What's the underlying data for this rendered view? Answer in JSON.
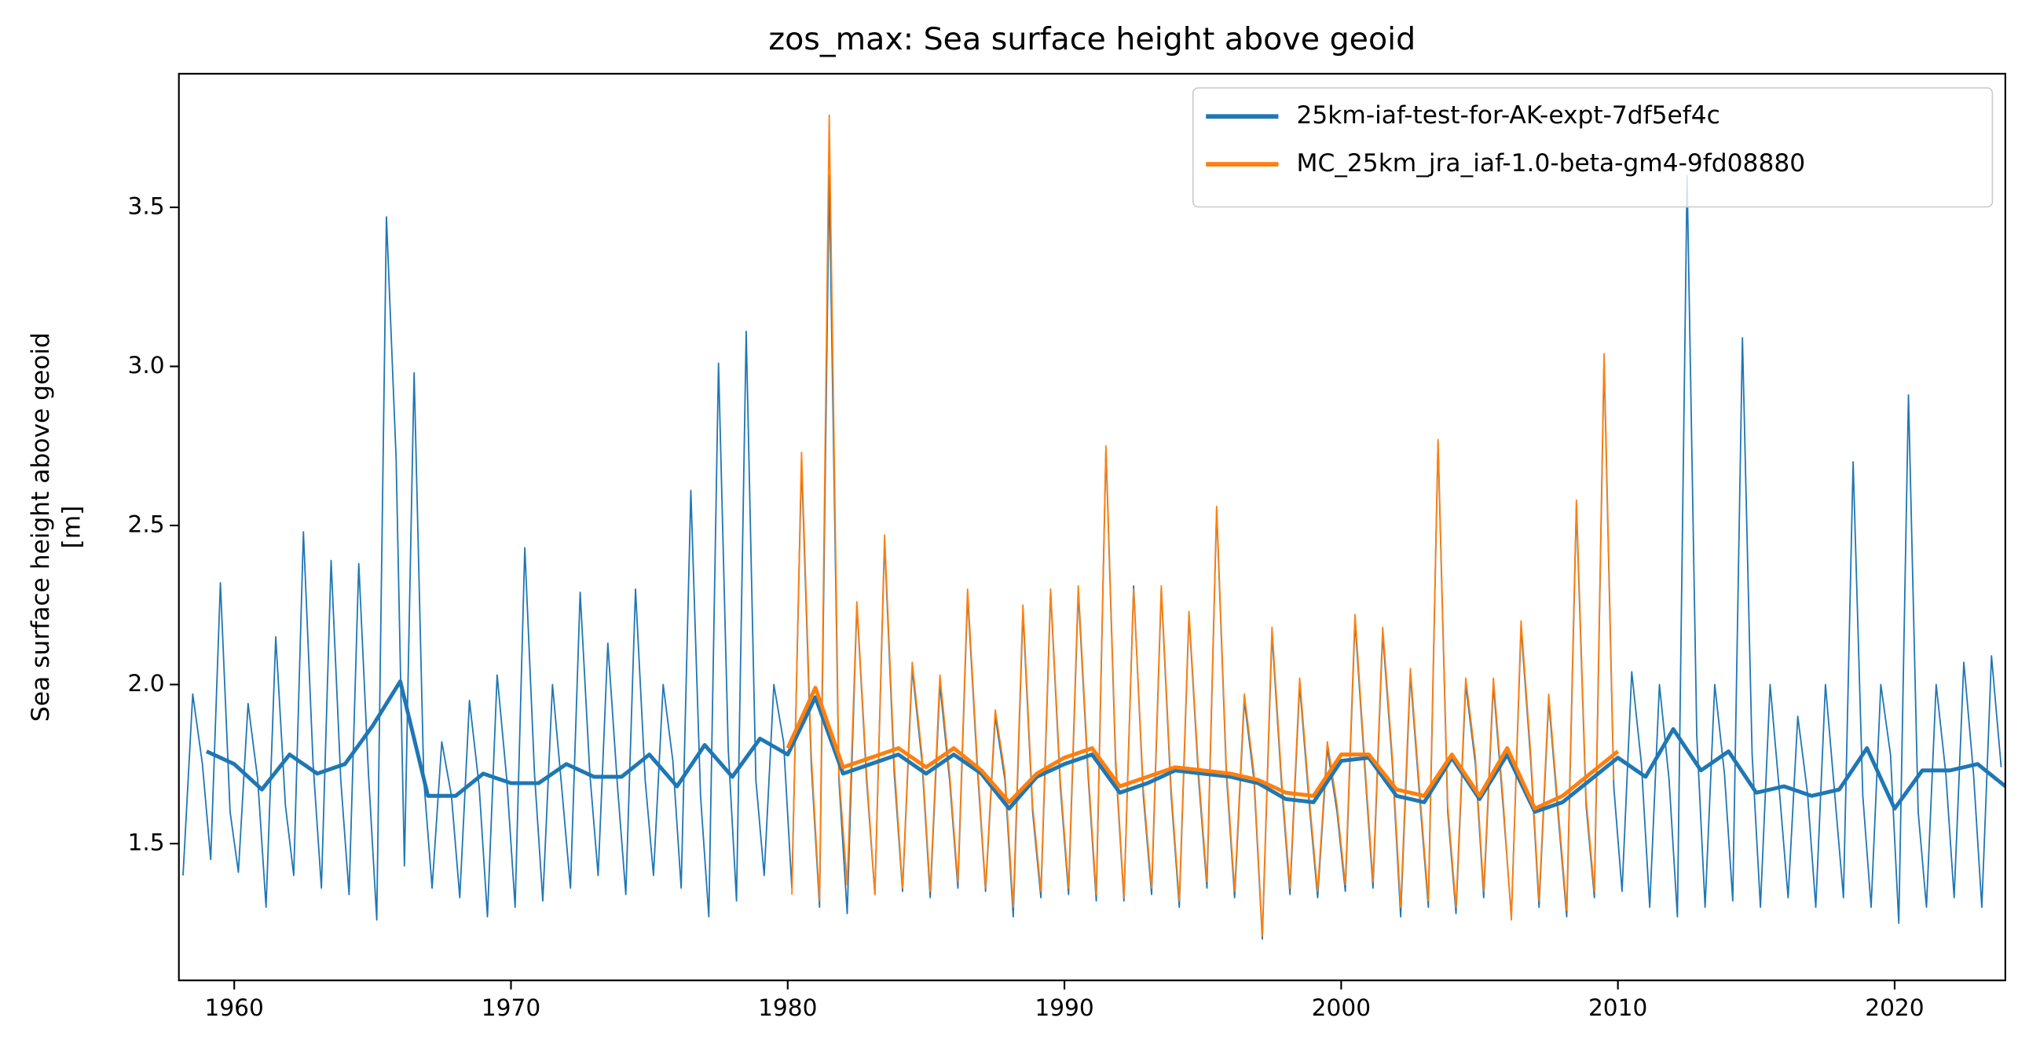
{
  "chart_data": {
    "type": "line",
    "title": "zos_max: Sea surface height above geoid",
    "ylabel": [
      "Sea surface height above geoid",
      "[m]"
    ],
    "xlim": [
      1958.0,
      2024.0
    ],
    "ylim": [
      1.07,
      3.92
    ],
    "xticks": [
      1960,
      1970,
      1980,
      1990,
      2000,
      2010,
      2020
    ],
    "yticks": [
      1.5,
      {
        "value": 2.0,
        "label": "2.0"
      },
      2.5,
      {
        "value": 3.0,
        "label": "3.0"
      },
      3.5
    ],
    "legend": "upper right",
    "series": [
      {
        "name": "25km-iaf-test-for-AK-expt-7df5ef4c",
        "color": "#1f77b4",
        "x": [
          1959,
          1960,
          1961,
          1962,
          1963,
          1964,
          1965,
          1966,
          1967,
          1968,
          1969,
          1970,
          1971,
          1972,
          1973,
          1974,
          1975,
          1976,
          1977,
          1978,
          1979,
          1980,
          1981,
          1982,
          1983,
          1984,
          1985,
          1986,
          1987,
          1988,
          1989,
          1990,
          1991,
          1992,
          1993,
          1994,
          1995,
          1996,
          1997,
          1998,
          1999,
          2000,
          2001,
          2002,
          2003,
          2004,
          2005,
          2006,
          2007,
          2008,
          2009,
          2010,
          2011,
          2012,
          2013,
          2014,
          2015,
          2016,
          2017,
          2018,
          2019,
          2020,
          2021,
          2022,
          2023,
          2024
        ],
        "values": [
          1.79,
          1.75,
          1.67,
          1.78,
          1.72,
          1.75,
          1.87,
          2.01,
          1.65,
          1.65,
          1.72,
          1.69,
          1.69,
          1.75,
          1.71,
          1.71,
          1.78,
          1.68,
          1.81,
          1.71,
          1.83,
          1.78,
          1.96,
          1.72,
          1.75,
          1.78,
          1.72,
          1.78,
          1.72,
          1.61,
          1.71,
          1.75,
          1.78,
          1.66,
          1.69,
          1.73,
          1.72,
          1.71,
          1.69,
          1.64,
          1.63,
          1.76,
          1.77,
          1.65,
          1.63,
          1.77,
          1.64,
          1.78,
          1.6,
          1.63,
          1.7,
          1.77,
          1.71,
          1.86,
          1.73,
          1.79,
          1.66,
          1.68,
          1.65,
          1.67,
          1.8,
          1.61,
          1.73,
          1.73,
          1.75,
          1.68
        ],
        "monthly_x": [
          1958.15,
          1958.5,
          1958.85,
          1959.15,
          1959.5,
          1959.85,
          1960.15,
          1960.5,
          1960.85,
          1961.15,
          1961.5,
          1961.85,
          1962.15,
          1962.5,
          1962.85,
          1963.15,
          1963.5,
          1963.85,
          1964.15,
          1964.5,
          1964.85,
          1965.15,
          1965.5,
          1965.85,
          1966.15,
          1966.5,
          1966.85,
          1967.15,
          1967.5,
          1967.85,
          1968.15,
          1968.5,
          1968.85,
          1969.15,
          1969.5,
          1969.85,
          1970.15,
          1970.5,
          1970.85,
          1971.15,
          1971.5,
          1971.85,
          1972.15,
          1972.5,
          1972.85,
          1973.15,
          1973.5,
          1973.85,
          1974.15,
          1974.5,
          1974.85,
          1975.15,
          1975.5,
          1975.85,
          1976.15,
          1976.5,
          1976.85,
          1977.15,
          1977.5,
          1977.85,
          1978.15,
          1978.5,
          1978.85,
          1979.15,
          1979.5,
          1979.85,
          1980.15,
          1980.5,
          1980.85,
          1981.15,
          1981.5,
          1981.85,
          1982.15,
          1982.5,
          1982.85,
          1983.15,
          1983.5,
          1983.85,
          1984.15,
          1984.5,
          1984.85,
          1985.15,
          1985.5,
          1985.85,
          1986.15,
          1986.5,
          1986.85,
          1987.15,
          1987.5,
          1987.85,
          1988.15,
          1988.5,
          1988.85,
          1989.15,
          1989.5,
          1989.85,
          1990.15,
          1990.5,
          1990.85,
          1991.15,
          1991.5,
          1991.85,
          1992.15,
          1992.5,
          1992.85,
          1993.15,
          1993.5,
          1993.85,
          1994.15,
          1994.5,
          1994.85,
          1995.15,
          1995.5,
          1995.85,
          1996.15,
          1996.5,
          1996.85,
          1997.15,
          1997.5,
          1997.85,
          1998.15,
          1998.5,
          1998.85,
          1999.15,
          1999.5,
          1999.85,
          2000.15,
          2000.5,
          2000.85,
          2001.15,
          2001.5,
          2001.85,
          2002.15,
          2002.5,
          2002.85,
          2003.15,
          2003.5,
          2003.85,
          2004.15,
          2004.5,
          2004.85,
          2005.15,
          2005.5,
          2005.85,
          2006.15,
          2006.5,
          2006.85,
          2007.15,
          2007.5,
          2007.85,
          2008.15,
          2008.5,
          2008.85,
          2009.15,
          2009.5,
          2009.85,
          2010.15,
          2010.5,
          2010.85,
          2011.15,
          2011.5,
          2011.85,
          2012.15,
          2012.5,
          2012.85,
          2013.15,
          2013.5,
          2013.85,
          2014.15,
          2014.5,
          2014.85,
          2015.15,
          2015.5,
          2015.85,
          2016.15,
          2016.5,
          2016.85,
          2017.15,
          2017.5,
          2017.85,
          2018.15,
          2018.5,
          2018.85,
          2019.15,
          2019.5,
          2019.85,
          2020.15,
          2020.5,
          2020.85,
          2021.15,
          2021.5,
          2021.85,
          2022.15,
          2022.5,
          2022.85,
          2023.15,
          2023.5,
          2023.85
        ],
        "monthly_values": [
          1.4,
          1.97,
          1.75,
          1.45,
          2.32,
          1.6,
          1.41,
          1.94,
          1.7,
          1.3,
          2.15,
          1.62,
          1.4,
          2.48,
          1.75,
          1.36,
          2.39,
          1.7,
          1.34,
          2.38,
          1.72,
          1.26,
          3.47,
          2.71,
          1.43,
          2.98,
          1.7,
          1.36,
          1.82,
          1.65,
          1.33,
          1.95,
          1.68,
          1.27,
          2.03,
          1.7,
          1.3,
          2.43,
          1.72,
          1.32,
          2.0,
          1.66,
          1.36,
          2.29,
          1.72,
          1.4,
          2.13,
          1.68,
          1.34,
          2.3,
          1.7,
          1.4,
          2.0,
          1.76,
          1.36,
          2.61,
          1.65,
          1.27,
          3.01,
          1.8,
          1.32,
          3.11,
          1.7,
          1.4,
          2.0,
          1.82,
          1.36,
          2.7,
          1.75,
          1.3,
          3.6,
          1.7,
          1.28,
          2.25,
          1.7,
          1.34,
          2.45,
          1.72,
          1.35,
          2.05,
          1.76,
          1.33,
          2.0,
          1.7,
          1.36,
          2.28,
          1.74,
          1.35,
          1.9,
          1.7,
          1.27,
          2.23,
          1.6,
          1.33,
          2.29,
          1.68,
          1.34,
          2.29,
          1.72,
          1.32,
          2.74,
          1.75,
          1.32,
          2.31,
          1.65,
          1.34,
          2.3,
          1.66,
          1.3,
          2.22,
          1.7,
          1.36,
          2.55,
          1.72,
          1.33,
          1.95,
          1.7,
          1.2,
          2.16,
          1.68,
          1.34,
          2.0,
          1.62,
          1.33,
          1.8,
          1.6,
          1.35,
          2.2,
          1.74,
          1.36,
          2.16,
          1.75,
          1.27,
          2.03,
          1.63,
          1.3,
          2.76,
          1.6,
          1.28,
          2.0,
          1.75,
          1.33,
          2.0,
          1.62,
          1.27,
          2.18,
          1.76,
          1.3,
          1.95,
          1.58,
          1.27,
          2.56,
          1.62,
          1.33,
          3.02,
          1.68,
          1.35,
          2.04,
          1.75,
          1.3,
          2.0,
          1.7,
          1.27,
          3.6,
          1.84,
          1.3,
          2.0,
          1.72,
          1.32,
          3.09,
          1.78,
          1.3,
          2.0,
          1.65,
          1.33,
          1.9,
          1.66,
          1.3,
          2.0,
          1.64,
          1.33,
          2.7,
          1.65,
          1.3,
          2.0,
          1.78,
          1.25,
          2.91,
          1.6,
          1.3,
          2.0,
          1.72,
          1.33,
          2.07,
          1.72,
          1.3,
          2.09,
          1.74
        ]
      },
      {
        "name": "MC_25km_jra_iaf-1.0-beta-gm4-9fd08880",
        "color": "#ff7f0e",
        "x": [
          1980,
          1981,
          1982,
          1983,
          1984,
          1985,
          1986,
          1987,
          1988,
          1989,
          1990,
          1991,
          1992,
          1993,
          1994,
          1995,
          1996,
          1997,
          1998,
          1999,
          2000,
          2001,
          2002,
          2003,
          2004,
          2005,
          2006,
          2007,
          2008,
          2009,
          2010
        ],
        "values": [
          1.8,
          1.99,
          1.74,
          1.77,
          1.8,
          1.74,
          1.8,
          1.73,
          1.63,
          1.72,
          1.77,
          1.8,
          1.68,
          1.71,
          1.74,
          1.73,
          1.72,
          1.7,
          1.66,
          1.65,
          1.78,
          1.78,
          1.67,
          1.65,
          1.78,
          1.65,
          1.8,
          1.61,
          1.65,
          1.72,
          1.79
        ],
        "monthly_x": [
          1980.15,
          1980.5,
          1980.85,
          1981.15,
          1981.5,
          1981.85,
          1982.15,
          1982.5,
          1982.85,
          1983.15,
          1983.5,
          1983.85,
          1984.15,
          1984.5,
          1984.85,
          1985.15,
          1985.5,
          1985.85,
          1986.15,
          1986.5,
          1986.85,
          1987.15,
          1987.5,
          1987.85,
          1988.15,
          1988.5,
          1988.85,
          1989.15,
          1989.5,
          1989.85,
          1990.15,
          1990.5,
          1990.85,
          1991.15,
          1991.5,
          1991.85,
          1992.15,
          1992.5,
          1992.85,
          1993.15,
          1993.5,
          1993.85,
          1994.15,
          1994.5,
          1994.85,
          1995.15,
          1995.5,
          1995.85,
          1996.15,
          1996.5,
          1996.85,
          1997.15,
          1997.5,
          1997.85,
          1998.15,
          1998.5,
          1998.85,
          1999.15,
          1999.5,
          1999.85,
          2000.15,
          2000.5,
          2000.85,
          2001.15,
          2001.5,
          2001.85,
          2002.15,
          2002.5,
          2002.85,
          2003.15,
          2003.5,
          2003.85,
          2004.15,
          2004.5,
          2004.85,
          2005.15,
          2005.5,
          2005.85,
          2006.15,
          2006.5,
          2006.85,
          2007.15,
          2007.5,
          2007.85,
          2008.15,
          2008.5,
          2008.85,
          2009.15,
          2009.5,
          2009.85
        ],
        "monthly_values": [
          1.34,
          2.73,
          1.78,
          1.32,
          3.79,
          1.72,
          1.37,
          2.26,
          1.72,
          1.34,
          2.47,
          1.75,
          1.36,
          2.07,
          1.78,
          1.35,
          2.03,
          1.72,
          1.38,
          2.3,
          1.76,
          1.36,
          1.92,
          1.72,
          1.3,
          2.25,
          1.62,
          1.35,
          2.3,
          1.7,
          1.36,
          2.31,
          1.74,
          1.34,
          2.75,
          1.77,
          1.33,
          2.3,
          1.67,
          1.36,
          2.31,
          1.68,
          1.32,
          2.23,
          1.72,
          1.38,
          2.56,
          1.74,
          1.35,
          1.97,
          1.72,
          1.21,
          2.18,
          1.7,
          1.36,
          2.02,
          1.64,
          1.35,
          1.82,
          1.62,
          1.37,
          2.22,
          1.76,
          1.38,
          2.18,
          1.77,
          1.3,
          2.05,
          1.65,
          1.32,
          2.77,
          1.62,
          1.3,
          2.02,
          1.77,
          1.35,
          2.02,
          1.64,
          1.26,
          2.2,
          1.78,
          1.32,
          1.97,
          1.6,
          1.29,
          2.58,
          1.64,
          1.35,
          3.04,
          1.7
        ]
      }
    ]
  }
}
